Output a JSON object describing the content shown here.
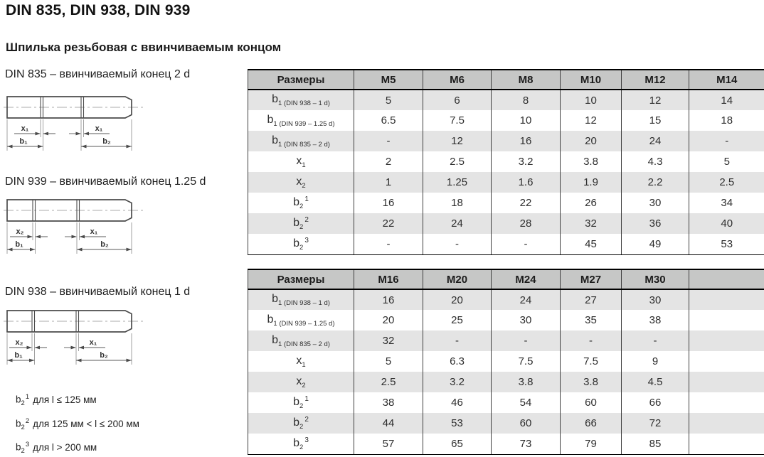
{
  "page": {
    "title": "DIN 835, DIN 938, DIN 939",
    "subtitle": "Шпилька резьбовая с ввинчиваемым концом"
  },
  "colors": {
    "header_bg": "#c6c7c6",
    "row_alt_bg": "#e4e4e4",
    "row_bg": "#ffffff",
    "grid_line": "#3f3f3f",
    "border_dark": "#000000",
    "text": "#2e2e2e",
    "drawing_line": "#4b4b4b"
  },
  "drawings": [
    {
      "caption": "DIN 835 – ввинчиваемый конец 2 d",
      "left_dim": "x₁",
      "right_dim": "x₁",
      "left_len": "b₁",
      "right_len": "b₂"
    },
    {
      "caption": "DIN 939 – ввинчиваемый конец 1.25 d",
      "left_dim": "x₂",
      "right_dim": "x₁",
      "left_len": "b₁",
      "right_len": "b₂"
    },
    {
      "caption": "DIN 938 – ввинчиваемый конец 1 d",
      "left_dim": "x₂",
      "right_dim": "x₁",
      "left_len": "b₁",
      "right_len": "b₂"
    }
  ],
  "footnotes": [
    {
      "base": "b",
      "sub": "2",
      "sup": "1",
      "text": "для l ≤ 125 мм"
    },
    {
      "base": "b",
      "sub": "2",
      "sup": "2",
      "text": "для 125 мм < l ≤ 200 мм"
    },
    {
      "base": "b",
      "sub": "2",
      "sup": "3",
      "text": "для l > 200 мм"
    }
  ],
  "tables": [
    {
      "header": [
        "Размеры",
        "M5",
        "M6",
        "M8",
        "M10",
        "M12",
        "M14"
      ],
      "rows": [
        {
          "label": {
            "base": "b",
            "sub": "1 (DIN 938 – 1 d)",
            "sup": ""
          },
          "values": [
            "5",
            "6",
            "8",
            "10",
            "12",
            "14"
          ]
        },
        {
          "label": {
            "base": "b",
            "sub": "1 (DIN 939 – 1.25 d)",
            "sup": ""
          },
          "values": [
            "6.5",
            "7.5",
            "10",
            "12",
            "15",
            "18"
          ]
        },
        {
          "label": {
            "base": "b",
            "sub": "1 (DIN 835 – 2 d)",
            "sup": ""
          },
          "values": [
            "-",
            "12",
            "16",
            "20",
            "24",
            "-"
          ]
        },
        {
          "label": {
            "base": "x",
            "sub": "1",
            "sup": ""
          },
          "values": [
            "2",
            "2.5",
            "3.2",
            "3.8",
            "4.3",
            "5"
          ]
        },
        {
          "label": {
            "base": "x",
            "sub": "2",
            "sup": ""
          },
          "values": [
            "1",
            "1.25",
            "1.6",
            "1.9",
            "2.2",
            "2.5"
          ]
        },
        {
          "label": {
            "base": "b",
            "sub": "2",
            "sup": "1"
          },
          "values": [
            "16",
            "18",
            "22",
            "26",
            "30",
            "34"
          ]
        },
        {
          "label": {
            "base": "b",
            "sub": "2",
            "sup": "2"
          },
          "values": [
            "22",
            "24",
            "28",
            "32",
            "36",
            "40"
          ]
        },
        {
          "label": {
            "base": "b",
            "sub": "2",
            "sup": "3"
          },
          "values": [
            "-",
            "-",
            "-",
            "45",
            "49",
            "53"
          ]
        }
      ]
    },
    {
      "header": [
        "Размеры",
        "M16",
        "M20",
        "M24",
        "M27",
        "M30",
        ""
      ],
      "rows": [
        {
          "label": {
            "base": "b",
            "sub": "1 (DIN 938 – 1 d)",
            "sup": ""
          },
          "values": [
            "16",
            "20",
            "24",
            "27",
            "30",
            ""
          ]
        },
        {
          "label": {
            "base": "b",
            "sub": "1 (DIN 939 – 1.25 d)",
            "sup": ""
          },
          "values": [
            "20",
            "25",
            "30",
            "35",
            "38",
            ""
          ]
        },
        {
          "label": {
            "base": "b",
            "sub": "1 (DIN 835 – 2 d)",
            "sup": ""
          },
          "values": [
            "32",
            "-",
            "-",
            "-",
            "-",
            ""
          ]
        },
        {
          "label": {
            "base": "x",
            "sub": "1",
            "sup": ""
          },
          "values": [
            "5",
            "6.3",
            "7.5",
            "7.5",
            "9",
            ""
          ]
        },
        {
          "label": {
            "base": "x",
            "sub": "2",
            "sup": ""
          },
          "values": [
            "2.5",
            "3.2",
            "3.8",
            "3.8",
            "4.5",
            ""
          ]
        },
        {
          "label": {
            "base": "b",
            "sub": "2",
            "sup": "1"
          },
          "values": [
            "38",
            "46",
            "54",
            "60",
            "66",
            ""
          ]
        },
        {
          "label": {
            "base": "b",
            "sub": "2",
            "sup": "2"
          },
          "values": [
            "44",
            "53",
            "60",
            "66",
            "72",
            ""
          ]
        },
        {
          "label": {
            "base": "b",
            "sub": "2",
            "sup": "3"
          },
          "values": [
            "57",
            "65",
            "73",
            "79",
            "85",
            ""
          ]
        }
      ]
    }
  ]
}
